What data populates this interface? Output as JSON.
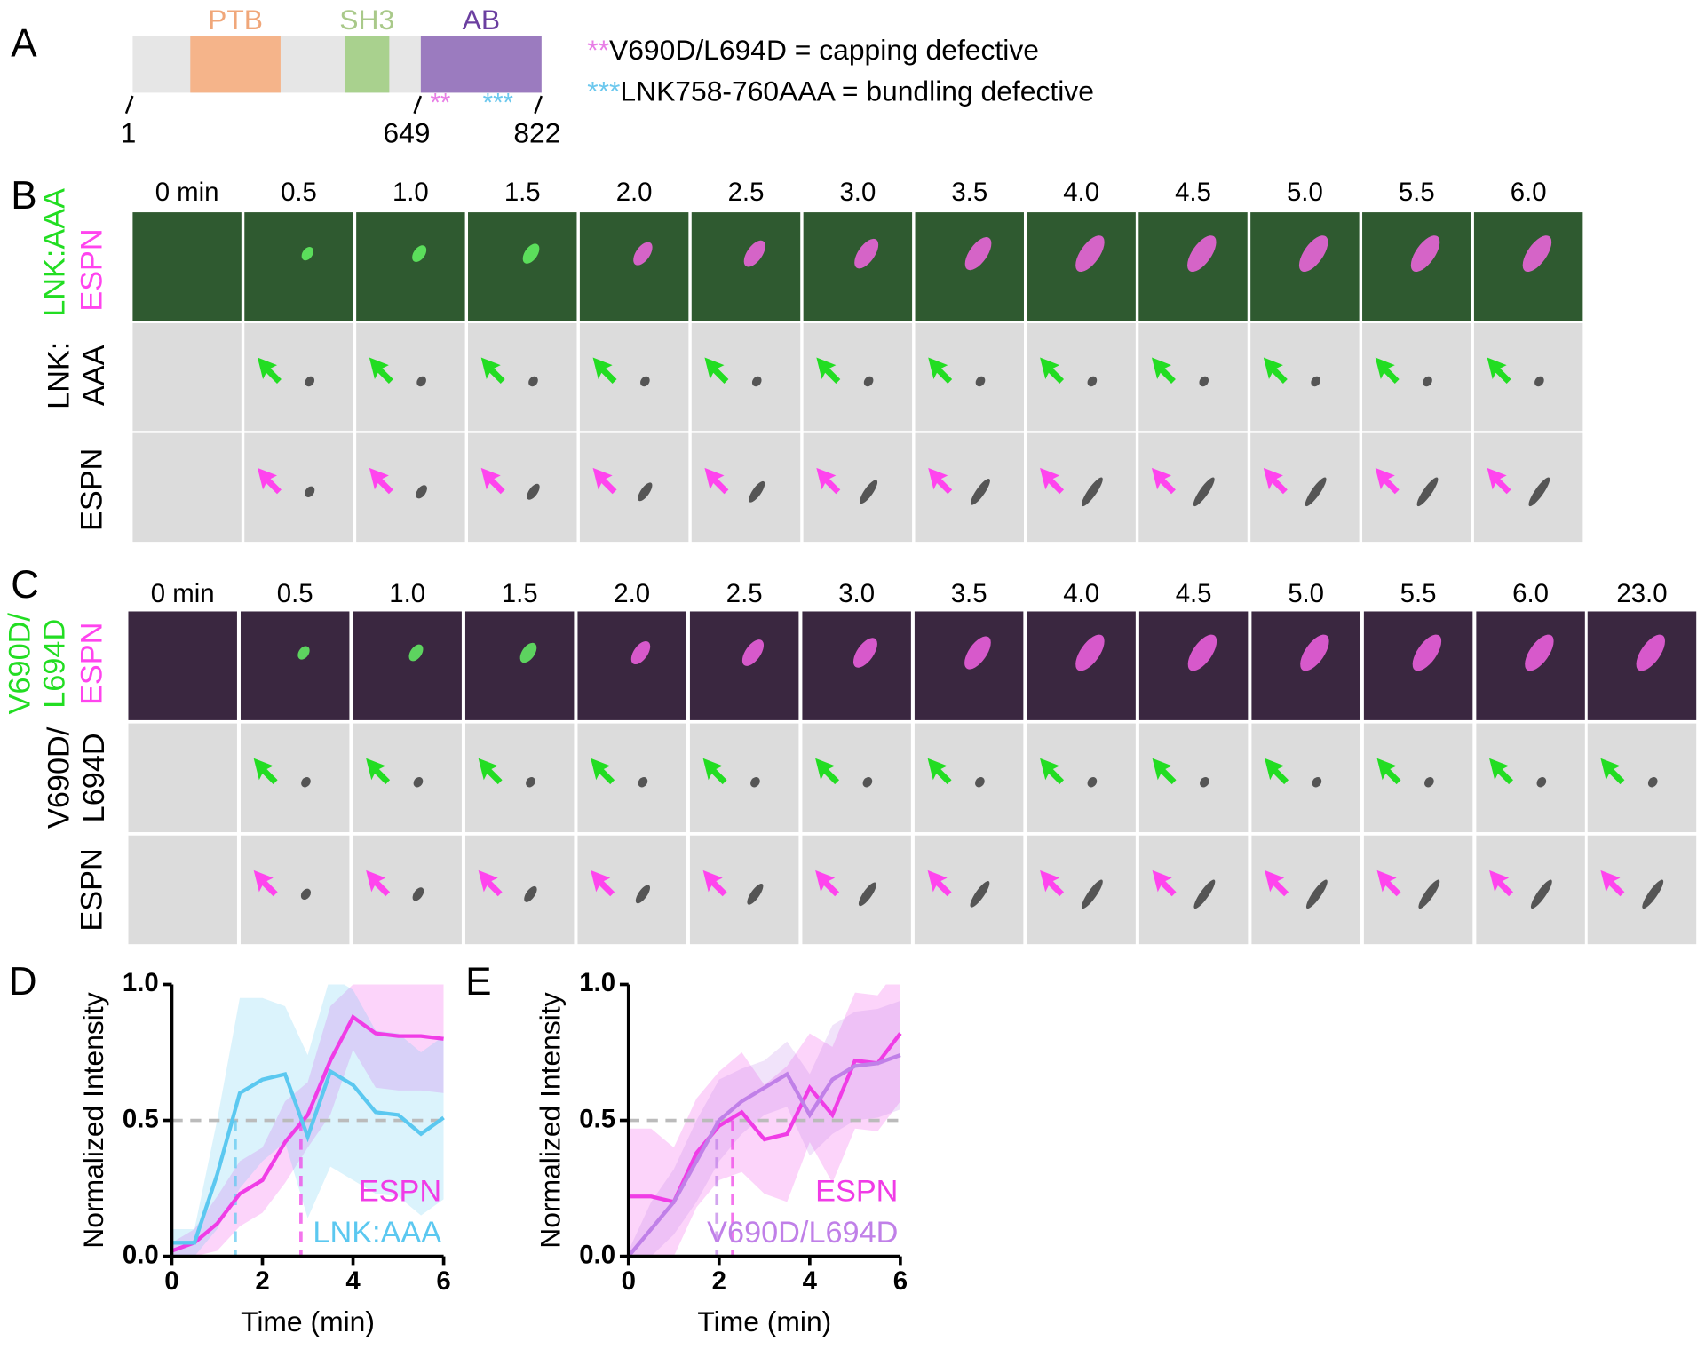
{
  "panel_a": {
    "label": "A",
    "domains": [
      {
        "name": "PTB"
      },
      {
        "name": "SH3"
      },
      {
        "name": "AB"
      }
    ],
    "positions": [
      1,
      649,
      822
    ],
    "legend": [
      {
        "stars": "**",
        "text": "V690D/L694D = capping defective"
      },
      {
        "stars": "***",
        "text": "LNK758-760AAA = bundling defective"
      }
    ]
  },
  "panel_b": {
    "label": "B",
    "times": [
      "0 min",
      "0.5",
      "1.0",
      "1.5",
      "2.0",
      "2.5",
      "3.0",
      "3.5",
      "4.0",
      "4.5",
      "5.0",
      "5.5",
      "6.0"
    ],
    "row_labels": [
      [
        "LNK:AAA",
        "ESPN"
      ],
      [
        "LNK:",
        "AAA"
      ],
      [
        "ESPN"
      ]
    ]
  },
  "panel_c": {
    "label": "C",
    "times": [
      "0 min",
      "0.5",
      "1.0",
      "1.5",
      "2.0",
      "2.5",
      "3.0",
      "3.5",
      "4.0",
      "4.5",
      "5.0",
      "5.5",
      "6.0",
      "23.0"
    ],
    "row_labels": [
      [
        "V690D/",
        "L694D",
        "ESPN"
      ],
      [
        "V690D/",
        "L694D"
      ],
      [
        "ESPN"
      ]
    ]
  },
  "chart_data": [
    {
      "type": "line",
      "label": "D",
      "xlabel": "Time (min)",
      "ylabel": "Normalized Intensity",
      "x": [
        0,
        0.5,
        1,
        1.5,
        2,
        2.5,
        3,
        3.5,
        4,
        4.5,
        5,
        5.5,
        6
      ],
      "xlim": [
        0,
        6
      ],
      "ylim": [
        0,
        1
      ],
      "xticks": [
        0,
        2,
        4,
        6
      ],
      "yticks": [
        {
          "value": 0,
          "label": "0.0"
        },
        {
          "value": 0.5,
          "label": "0.5"
        },
        {
          "value": 1,
          "label": "1.0"
        }
      ],
      "threshold": 0.5,
      "series": [
        {
          "name": "ESPN",
          "color": "#f03ce6",
          "values": [
            0.02,
            0.05,
            0.12,
            0.23,
            0.28,
            0.42,
            0.52,
            0.72,
            0.88,
            0.82,
            0.81,
            0.81,
            0.8
          ],
          "errors": [
            0.03,
            0.05,
            0.1,
            0.12,
            0.12,
            0.15,
            0.12,
            0.2,
            0.12,
            0.2,
            0.2,
            0.2,
            0.2
          ],
          "t_half": 2.85
        },
        {
          "name": "LNK:AAA",
          "color": "#5bc8f0",
          "values": [
            0.05,
            0.05,
            0.3,
            0.6,
            0.65,
            0.67,
            0.44,
            0.68,
            0.63,
            0.53,
            0.52,
            0.45,
            0.51
          ],
          "errors": [
            0.05,
            0.05,
            0.2,
            0.35,
            0.3,
            0.25,
            0.3,
            0.35,
            0.35,
            0.3,
            0.3,
            0.3,
            0.3
          ],
          "t_half": 1.4
        }
      ]
    },
    {
      "type": "line",
      "label": "E",
      "xlabel": "Time (min)",
      "ylabel": "Normalized Intensity",
      "x": [
        0,
        0.5,
        1,
        1.5,
        2,
        2.5,
        3,
        3.5,
        4,
        4.5,
        5,
        5.5,
        6
      ],
      "xlim": [
        0,
        6
      ],
      "ylim": [
        0,
        1
      ],
      "xticks": [
        0,
        2,
        4,
        6
      ],
      "yticks": [
        {
          "value": 0,
          "label": "0.0"
        },
        {
          "value": 0.5,
          "label": "0.5"
        },
        {
          "value": 1,
          "label": "1.0"
        }
      ],
      "threshold": 0.5,
      "series": [
        {
          "name": "ESPN",
          "color": "#f03ce6",
          "values": [
            0.22,
            0.22,
            0.2,
            0.38,
            0.48,
            0.53,
            0.43,
            0.45,
            0.62,
            0.52,
            0.72,
            0.71,
            0.82
          ],
          "errors": [
            0.25,
            0.25,
            0.2,
            0.2,
            0.2,
            0.22,
            0.2,
            0.25,
            0.2,
            0.25,
            0.25,
            0.25,
            0.25
          ],
          "t_half": 2.3
        },
        {
          "name": "V690D/L694D",
          "color": "#c080e8",
          "values": [
            0,
            0.1,
            0.2,
            0.35,
            0.5,
            0.57,
            0.62,
            0.67,
            0.52,
            0.65,
            0.7,
            0.71,
            0.74
          ],
          "errors": [
            0.02,
            0.1,
            0.12,
            0.15,
            0.15,
            0.12,
            0.1,
            0.12,
            0.15,
            0.2,
            0.2,
            0.2,
            0.2
          ],
          "t_half": 1.95
        }
      ]
    }
  ]
}
